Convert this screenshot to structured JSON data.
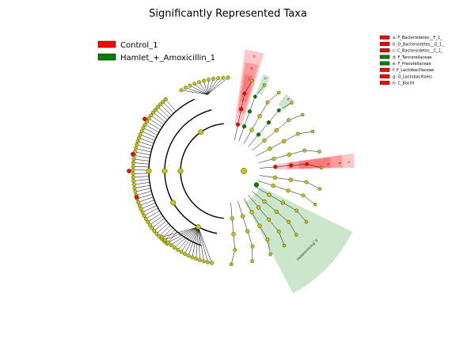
{
  "chart_data": {
    "type": "cladogram",
    "title": "Significantly Represented Taxa",
    "groups": [
      {
        "name": "Control_1",
        "color": "#ff0000"
      },
      {
        "name": "Hamlet_+_Amoxicillin_1",
        "color": "#008000"
      }
    ],
    "taxa_legend": [
      {
        "key": "a",
        "label": "a: F_Bacteroidetes__F_1_",
        "group": "Control_1"
      },
      {
        "key": "b",
        "label": "b: O_Bacteroidetes__O_1_",
        "group": "Control_1"
      },
      {
        "key": "c",
        "label": "c: C_Bacteroidetes__C_1_",
        "group": "Control_1"
      },
      {
        "key": "d",
        "label": "d: F_Tannerellaceae",
        "group": "Hamlet_+_Amoxicillin_1"
      },
      {
        "key": "e",
        "label": "e: F_Prevotellaceae",
        "group": "Hamlet_+_Amoxicillin_1"
      },
      {
        "key": "f",
        "label": "f: F_Lactobacillaceae",
        "group": "Control_1"
      },
      {
        "key": "g",
        "label": "g: O_Lactobacillales",
        "group": "Control_1"
      },
      {
        "key": "h",
        "label": "h: C_Bacilli",
        "group": "Control_1"
      }
    ],
    "highlighted_clades": [
      {
        "label": "p_Bacteroidetes",
        "group": "Hamlet_+_Amoxicillin_1"
      },
      {
        "label": "h",
        "group": "Control_1"
      },
      {
        "label": "g",
        "group": "Control_1"
      },
      {
        "label": "f",
        "group": "Control_1"
      },
      {
        "label": "e",
        "group": "Hamlet_+_Amoxicillin_1"
      },
      {
        "label": "d",
        "group": "Hamlet_+_Amoxicillin_1"
      },
      {
        "label": "c",
        "group": "Control_1"
      },
      {
        "label": "b",
        "group": "Control_1"
      },
      {
        "label": "a",
        "group": "Control_1"
      }
    ],
    "node_colors": {
      "neutral": "#c8c800",
      "control": "#ff0000",
      "treatment": "#008000"
    }
  }
}
